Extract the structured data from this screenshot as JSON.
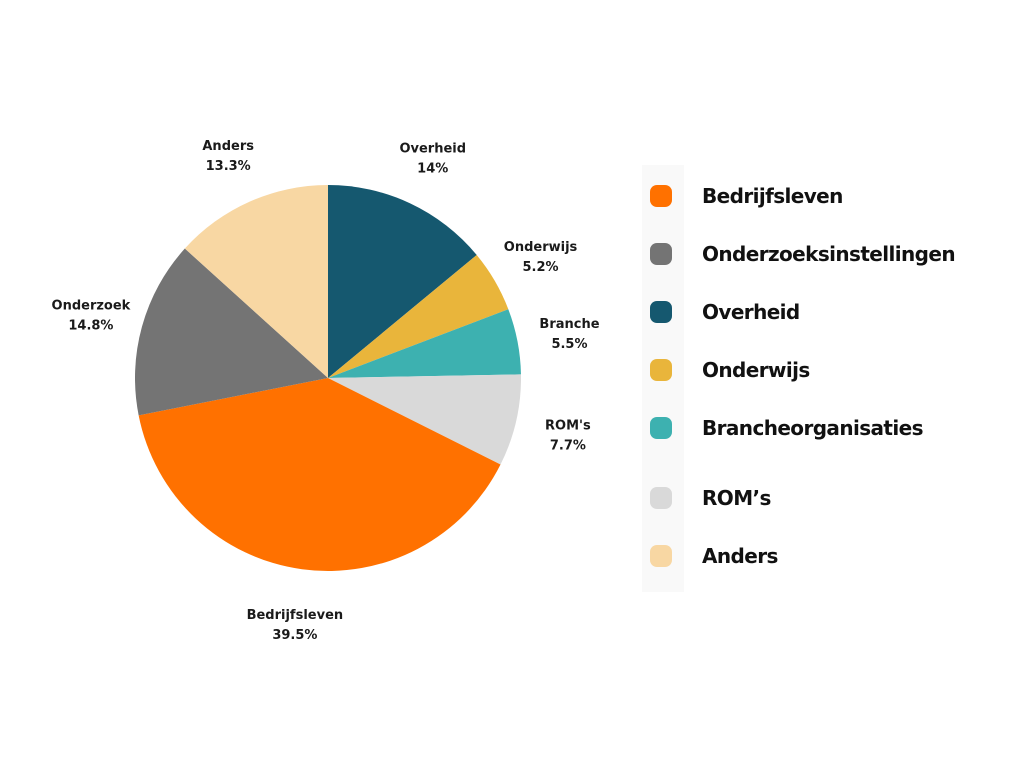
{
  "chart_data": {
    "type": "pie",
    "title": "",
    "slices": [
      {
        "label": "Overheid",
        "value": 14,
        "value_label": "14%",
        "color": "#15586f"
      },
      {
        "label": "Onderwijs",
        "value": 5.2,
        "value_label": "5.2%",
        "color": "#e9b53b"
      },
      {
        "label": "Branche",
        "value": 5.5,
        "value_label": "5.5%",
        "color": "#3db1b0"
      },
      {
        "label": "ROM's",
        "value": 7.7,
        "value_label": "7.7%",
        "color": "#d9d9d9"
      },
      {
        "label": "Bedrijfsleven",
        "value": 39.5,
        "value_label": "39.5%",
        "color": "#ff7100"
      },
      {
        "label": "Onderzoek",
        "value": 14.8,
        "value_label": "14.8%",
        "color": "#747474"
      },
      {
        "label": "Anders",
        "value": 13.3,
        "value_label": "13.3%",
        "color": "#f8d7a3"
      }
    ],
    "legend": {
      "placement": "right",
      "entries": [
        {
          "label": "Bedrijfsleven",
          "color": "#ff7100"
        },
        {
          "label": "Onderzoeksinstellingen",
          "color": "#747474"
        },
        {
          "label": "Overheid",
          "color": "#15586f"
        },
        {
          "label": "Onderwijs",
          "color": "#e9b53b"
        },
        {
          "label": "Brancheorganisaties",
          "color": "#3db1b0"
        },
        {
          "label": "ROM’s",
          "color": "#d9d9d9"
        },
        {
          "label": "Anders",
          "color": "#f8d7a3"
        }
      ]
    }
  }
}
